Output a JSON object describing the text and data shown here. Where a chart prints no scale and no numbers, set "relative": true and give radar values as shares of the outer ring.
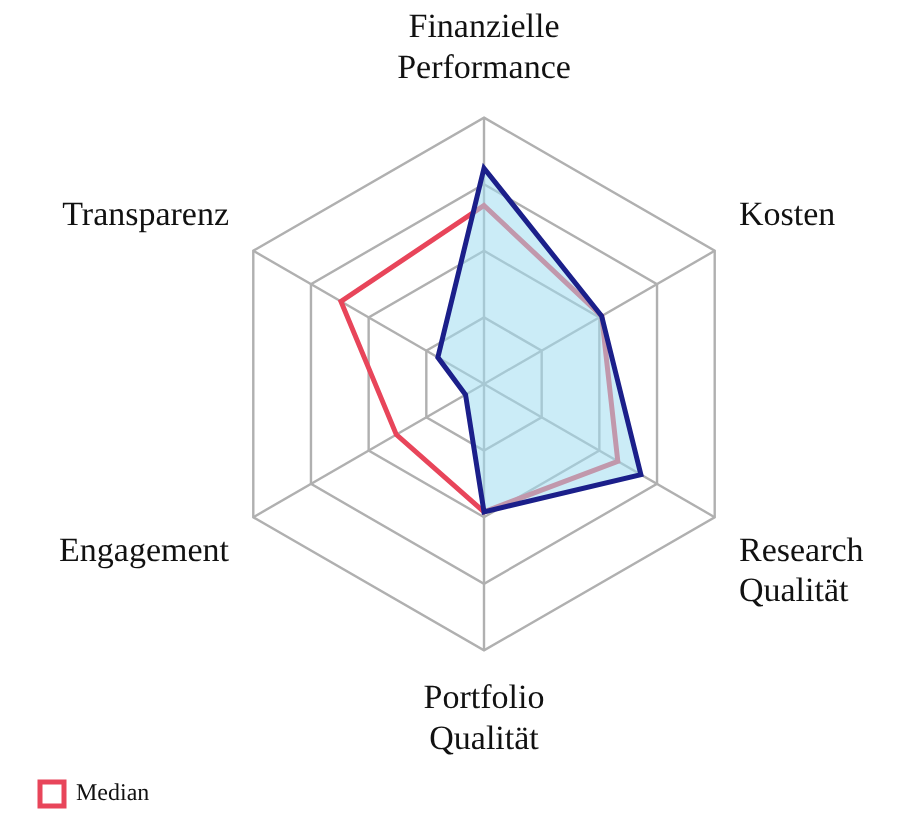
{
  "chart_data": {
    "type": "radar",
    "relative": true,
    "grid": true,
    "legend": "bottom left",
    "marker": "none",
    "categories": [
      "Finanzielle Performance",
      "Kosten",
      "Research Qualität",
      "Portfolio Qualität",
      "Engagement",
      "Transparenz"
    ],
    "series": [
      {
        "color": "#1b1f8a",
        "values": [
          0.81,
          0.51,
          0.68,
          0.48,
          0.08,
          0.2
        ]
      },
      {
        "name": "Median",
        "color": "#e8455a",
        "values": [
          0.67,
          0.51,
          0.58,
          0.48,
          0.38,
          0.62
        ]
      }
    ]
  }
}
